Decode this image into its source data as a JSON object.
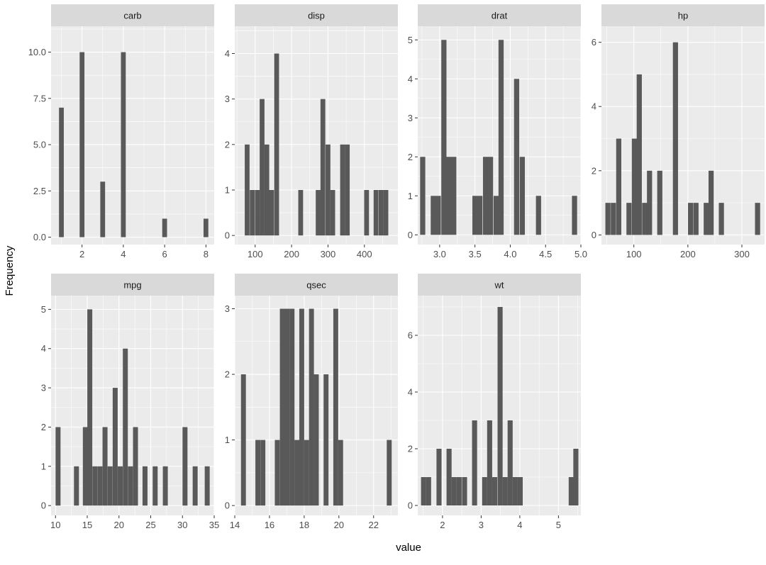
{
  "chart_data": {
    "type": "histogram-facets",
    "xlabel": "value",
    "ylabel": "Frequency",
    "colors": {
      "bar": "#595959",
      "panel": "#ebebeb",
      "strip": "#d9d9d9",
      "grid": "#ffffff"
    },
    "panels": [
      {
        "name": "carb",
        "xlim": [
          0.5,
          8.4
        ],
        "xticks": [
          2,
          4,
          6,
          8
        ],
        "xtick_labels": [
          "2",
          "4",
          "6",
          "8"
        ],
        "ylim": [
          -0.4,
          11.4
        ],
        "yticks": [
          0,
          2.5,
          5,
          7.5,
          10
        ],
        "ytick_labels": [
          "0.0",
          "2.5",
          "5.0",
          "7.5",
          "10.0"
        ],
        "bin_width": 0.233,
        "bins": [
          [
            1,
            7
          ],
          [
            2,
            10
          ],
          [
            3,
            3
          ],
          [
            4,
            10
          ],
          [
            6,
            1
          ],
          [
            8,
            1
          ]
        ]
      },
      {
        "name": "disp",
        "xlim": [
          44,
          492
        ],
        "xticks": [
          100,
          200,
          300,
          400
        ],
        "xtick_labels": [
          "100",
          "200",
          "300",
          "400"
        ],
        "ylim": [
          -0.2,
          4.6
        ],
        "yticks": [
          0,
          1,
          2,
          3,
          4
        ],
        "ytick_labels": [
          "0",
          "1",
          "2",
          "3",
          "4"
        ],
        "bin_width": 13.2,
        "bins": [
          [
            78,
            2
          ],
          [
            92,
            1
          ],
          [
            106,
            1
          ],
          [
            119,
            3
          ],
          [
            132,
            2
          ],
          [
            145,
            1
          ],
          [
            159,
            4
          ],
          [
            225,
            1
          ],
          [
            273,
            1
          ],
          [
            286,
            3
          ],
          [
            300,
            2
          ],
          [
            313,
            1
          ],
          [
            340,
            2
          ],
          [
            353,
            2
          ],
          [
            406,
            1
          ],
          [
            432,
            1
          ],
          [
            446,
            1
          ],
          [
            459,
            1
          ]
        ]
      },
      {
        "name": "drat",
        "xlim": [
          2.69,
          5.0
        ],
        "xticks": [
          3.0,
          3.5,
          4.0,
          4.5,
          5.0
        ],
        "xtick_labels": [
          "3.0",
          "3.5",
          "4.0",
          "4.5",
          "5.0"
        ],
        "ylim": [
          -0.25,
          5.35
        ],
        "yticks": [
          0,
          1,
          2,
          3,
          4,
          5
        ],
        "ytick_labels": [
          "0",
          "1",
          "2",
          "3",
          "4",
          "5"
        ],
        "bin_width": 0.073,
        "bins": [
          [
            2.76,
            2
          ],
          [
            2.91,
            1
          ],
          [
            2.98,
            1
          ],
          [
            3.06,
            5
          ],
          [
            3.13,
            2
          ],
          [
            3.2,
            2
          ],
          [
            3.5,
            1
          ],
          [
            3.57,
            1
          ],
          [
            3.65,
            2
          ],
          [
            3.72,
            2
          ],
          [
            3.8,
            1
          ],
          [
            3.87,
            5
          ],
          [
            4.09,
            4
          ],
          [
            4.17,
            2
          ],
          [
            4.4,
            1
          ],
          [
            4.91,
            1
          ]
        ]
      },
      {
        "name": "hp",
        "xlim": [
          40,
          342
        ],
        "xticks": [
          100,
          200,
          300
        ],
        "xtick_labels": [
          "100",
          "200",
          "300"
        ],
        "ylim": [
          -0.3,
          6.5
        ],
        "yticks": [
          0,
          2,
          4,
          6
        ],
        "ytick_labels": [
          "0",
          "2",
          "4",
          "6"
        ],
        "bin_width": 9.5,
        "bins": [
          [
            52,
            1
          ],
          [
            62,
            1
          ],
          [
            72,
            3
          ],
          [
            91,
            1
          ],
          [
            101,
            3
          ],
          [
            110,
            5
          ],
          [
            120,
            1
          ],
          [
            129,
            2
          ],
          [
            148,
            2
          ],
          [
            177,
            6
          ],
          [
            205,
            1
          ],
          [
            215,
            1
          ],
          [
            234,
            1
          ],
          [
            243,
            2
          ],
          [
            262,
            1
          ],
          [
            329,
            1
          ]
        ]
      },
      {
        "name": "mpg",
        "xlim": [
          9.3,
          35.0
        ],
        "xticks": [
          10,
          15,
          20,
          25,
          30,
          35
        ],
        "xtick_labels": [
          "10",
          "15",
          "20",
          "25",
          "30",
          "35"
        ],
        "ylim": [
          -0.25,
          5.35
        ],
        "yticks": [
          0,
          1,
          2,
          3,
          4,
          5
        ],
        "ytick_labels": [
          "0",
          "1",
          "2",
          "3",
          "4",
          "5"
        ],
        "bin_width": 0.783,
        "bins": [
          [
            10.4,
            2
          ],
          [
            13.3,
            1
          ],
          [
            14.7,
            2
          ],
          [
            15.4,
            5
          ],
          [
            16.2,
            1
          ],
          [
            17.0,
            1
          ],
          [
            17.8,
            2
          ],
          [
            18.6,
            1
          ],
          [
            19.4,
            3
          ],
          [
            20.2,
            1
          ],
          [
            21.0,
            4
          ],
          [
            21.8,
            1
          ],
          [
            22.6,
            2
          ],
          [
            24.1,
            1
          ],
          [
            25.7,
            1
          ],
          [
            27.3,
            1
          ],
          [
            30.4,
            2
          ],
          [
            32.0,
            1
          ],
          [
            33.9,
            1
          ]
        ]
      },
      {
        "name": "qsec",
        "xlim": [
          14.0,
          23.4
        ],
        "xticks": [
          14,
          16,
          18,
          20,
          22
        ],
        "xtick_labels": [
          "14",
          "16",
          "18",
          "20",
          "22"
        ],
        "ylim": [
          -0.15,
          3.2
        ],
        "yticks": [
          0,
          1,
          2,
          3
        ],
        "ytick_labels": [
          "0",
          "1",
          "2",
          "3"
        ],
        "bin_width": 0.283,
        "bins": [
          [
            14.5,
            2
          ],
          [
            15.33,
            1
          ],
          [
            15.62,
            1
          ],
          [
            16.45,
            1
          ],
          [
            16.74,
            3
          ],
          [
            17.02,
            3
          ],
          [
            17.3,
            3
          ],
          [
            17.58,
            1
          ],
          [
            17.86,
            3
          ],
          [
            18.14,
            1
          ],
          [
            18.42,
            3
          ],
          [
            18.7,
            2
          ],
          [
            19.26,
            2
          ],
          [
            19.82,
            3
          ],
          [
            20.1,
            1
          ],
          [
            22.9,
            1
          ]
        ]
      },
      {
        "name": "wt",
        "xlim": [
          1.36,
          5.58
        ],
        "xticks": [
          2,
          3,
          4,
          5
        ],
        "xtick_labels": [
          "2",
          "3",
          "4",
          "5"
        ],
        "ylim": [
          -0.35,
          7.4
        ],
        "yticks": [
          0,
          2,
          4,
          6
        ],
        "ytick_labels": [
          "0",
          "2",
          "4",
          "6"
        ],
        "bin_width": 0.131,
        "bins": [
          [
            1.51,
            1
          ],
          [
            1.64,
            1
          ],
          [
            1.91,
            2
          ],
          [
            2.17,
            2
          ],
          [
            2.3,
            1
          ],
          [
            2.43,
            1
          ],
          [
            2.57,
            1
          ],
          [
            2.83,
            3
          ],
          [
            3.09,
            1
          ],
          [
            3.22,
            3
          ],
          [
            3.35,
            1
          ],
          [
            3.49,
            7
          ],
          [
            3.62,
            1
          ],
          [
            3.75,
            3
          ],
          [
            3.88,
            1
          ],
          [
            4.01,
            1
          ],
          [
            5.33,
            1
          ],
          [
            5.45,
            2
          ]
        ]
      }
    ]
  }
}
